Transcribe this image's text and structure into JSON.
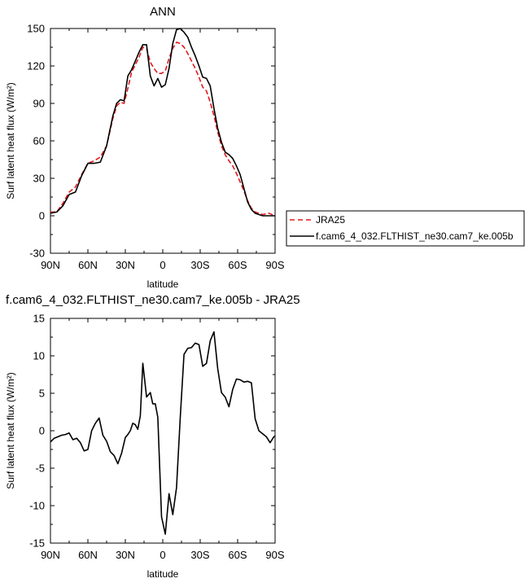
{
  "chart_data": [
    {
      "type": "line",
      "title": "ANN",
      "xlabel": "latitude",
      "ylabel": "Surf latent heat flux (W/m²)",
      "xlim": [
        -90,
        90
      ],
      "ylim": [
        -30,
        150
      ],
      "x_ticks": [
        -90,
        -60,
        -30,
        0,
        30,
        60,
        90
      ],
      "x_tick_labels": [
        "90N",
        "60N",
        "30N",
        "0",
        "30S",
        "60S",
        "90S"
      ],
      "y_ticks": [
        -30,
        0,
        30,
        60,
        90,
        120,
        150
      ],
      "y_tick_labels": [
        "-30",
        "0",
        "30",
        "60",
        "90",
        "120",
        "150"
      ],
      "grid": false,
      "legend": {
        "placement": "right",
        "entries": [
          "JRA25",
          "f.cam6_4_032.FLTHIST_ne30.cam7_ke.005b"
        ]
      },
      "series": [
        {
          "name": "JRA25",
          "color": "#e31a1c",
          "dash": "dashed",
          "x": [
            -90,
            -85,
            -80,
            -75,
            -70,
            -65,
            -60,
            -55,
            -50,
            -45,
            -40,
            -37,
            -34,
            -31,
            -28,
            -25,
            -22,
            -19,
            -16,
            -13,
            -10,
            -7,
            -4,
            -1,
            2,
            5,
            8,
            11,
            14,
            17,
            20,
            23,
            26,
            29,
            32,
            35,
            38,
            41,
            44,
            47,
            50,
            53,
            56,
            59,
            62,
            65,
            68,
            71,
            74,
            77,
            80,
            85,
            90
          ],
          "y": [
            3,
            3,
            10,
            19,
            23,
            33,
            42,
            44,
            47,
            56,
            78,
            88,
            91,
            90,
            102,
            115,
            121,
            127,
            135,
            134,
            123,
            118,
            114,
            114,
            116,
            126,
            134,
            139,
            138,
            135,
            130,
            124,
            118,
            111,
            103,
            100,
            91,
            80,
            67,
            56,
            49,
            44,
            40,
            34,
            27,
            20,
            12,
            6,
            3,
            2,
            1,
            2,
            0
          ]
        },
        {
          "name": "f.cam6_4_032.FLTHIST_ne30.cam7_ke.005b",
          "color": "#000000",
          "dash": "solid",
          "x": [
            -90,
            -85,
            -80,
            -75,
            -70,
            -65,
            -60,
            -55,
            -50,
            -45,
            -40,
            -37,
            -34,
            -31,
            -28,
            -25,
            -22,
            -19,
            -16,
            -13,
            -10,
            -7,
            -4,
            -1,
            2,
            5,
            8,
            11,
            14,
            17,
            20,
            23,
            26,
            29,
            32,
            35,
            38,
            41,
            44,
            47,
            50,
            53,
            56,
            59,
            62,
            65,
            68,
            71,
            74,
            77,
            80,
            85,
            90
          ],
          "y": [
            2,
            3,
            8,
            17,
            19,
            32,
            42,
            42,
            43,
            56,
            80,
            90,
            93,
            92,
            112,
            117,
            124,
            131,
            137,
            137,
            112,
            104,
            110,
            103,
            105,
            118,
            138,
            149,
            150,
            147,
            143,
            135,
            128,
            120,
            111,
            110,
            104,
            86,
            70,
            59,
            51,
            49,
            46,
            40,
            33,
            22,
            11,
            5,
            2,
            1,
            0,
            0,
            0
          ]
        }
      ]
    },
    {
      "type": "line",
      "title": "f.cam6_4_032.FLTHIST_ne30.cam7_ke.005b - JRA25",
      "xlabel": "latitude",
      "ylabel": "Surf latent heat flux (W/m²)",
      "xlim": [
        -90,
        90
      ],
      "ylim": [
        -15,
        15
      ],
      "x_ticks": [
        -90,
        -60,
        -30,
        0,
        30,
        60,
        90
      ],
      "x_tick_labels": [
        "90N",
        "60N",
        "30N",
        "0",
        "30S",
        "60S",
        "90S"
      ],
      "y_ticks": [
        -15,
        -10,
        -5,
        0,
        5,
        10,
        15
      ],
      "y_tick_labels": [
        "-15",
        "-10",
        "-5",
        "0",
        "5",
        "10",
        "15"
      ],
      "grid": false,
      "series": [
        {
          "color": "#000000",
          "dash": "solid",
          "x": [
            -90,
            -87,
            -84,
            -81,
            -78,
            -75,
            -72,
            -69,
            -66,
            -63,
            -60,
            -57,
            -54,
            -51,
            -48,
            -45,
            -42,
            -39,
            -36,
            -33,
            -30,
            -28,
            -26,
            -24,
            -22,
            -20,
            -18,
            -16,
            -13,
            -10,
            -8,
            -6,
            -4,
            -1,
            2,
            5,
            8,
            11,
            14,
            17,
            20,
            23,
            26,
            29,
            32,
            35,
            38,
            41,
            44,
            47,
            50,
            53,
            56,
            59,
            62,
            65,
            68,
            71,
            74,
            77,
            80,
            83,
            86,
            89,
            90
          ],
          "y": [
            -1.5,
            -1,
            -0.8,
            -0.6,
            -0.5,
            -0.3,
            -1.2,
            -1,
            -1.6,
            -2.7,
            -2.5,
            0,
            1,
            1.7,
            -0.6,
            -1.4,
            -2.8,
            -3.3,
            -4.4,
            -3,
            -0.9,
            -0.5,
            0,
            1,
            0.8,
            0.2,
            2,
            9,
            4.5,
            5.1,
            3.6,
            3.6,
            1.8,
            -11.5,
            -13.8,
            -8.4,
            -11.2,
            -7.6,
            1.8,
            10.2,
            11,
            11.1,
            11.7,
            11.5,
            8.6,
            9,
            12,
            13.2,
            8.3,
            5.1,
            4.5,
            3.2,
            5.5,
            6.9,
            6.8,
            6.5,
            6.6,
            6.4,
            1.6,
            0,
            -0.4,
            -0.8,
            -1.6,
            -0.8,
            -0.7
          ]
        }
      ]
    }
  ]
}
